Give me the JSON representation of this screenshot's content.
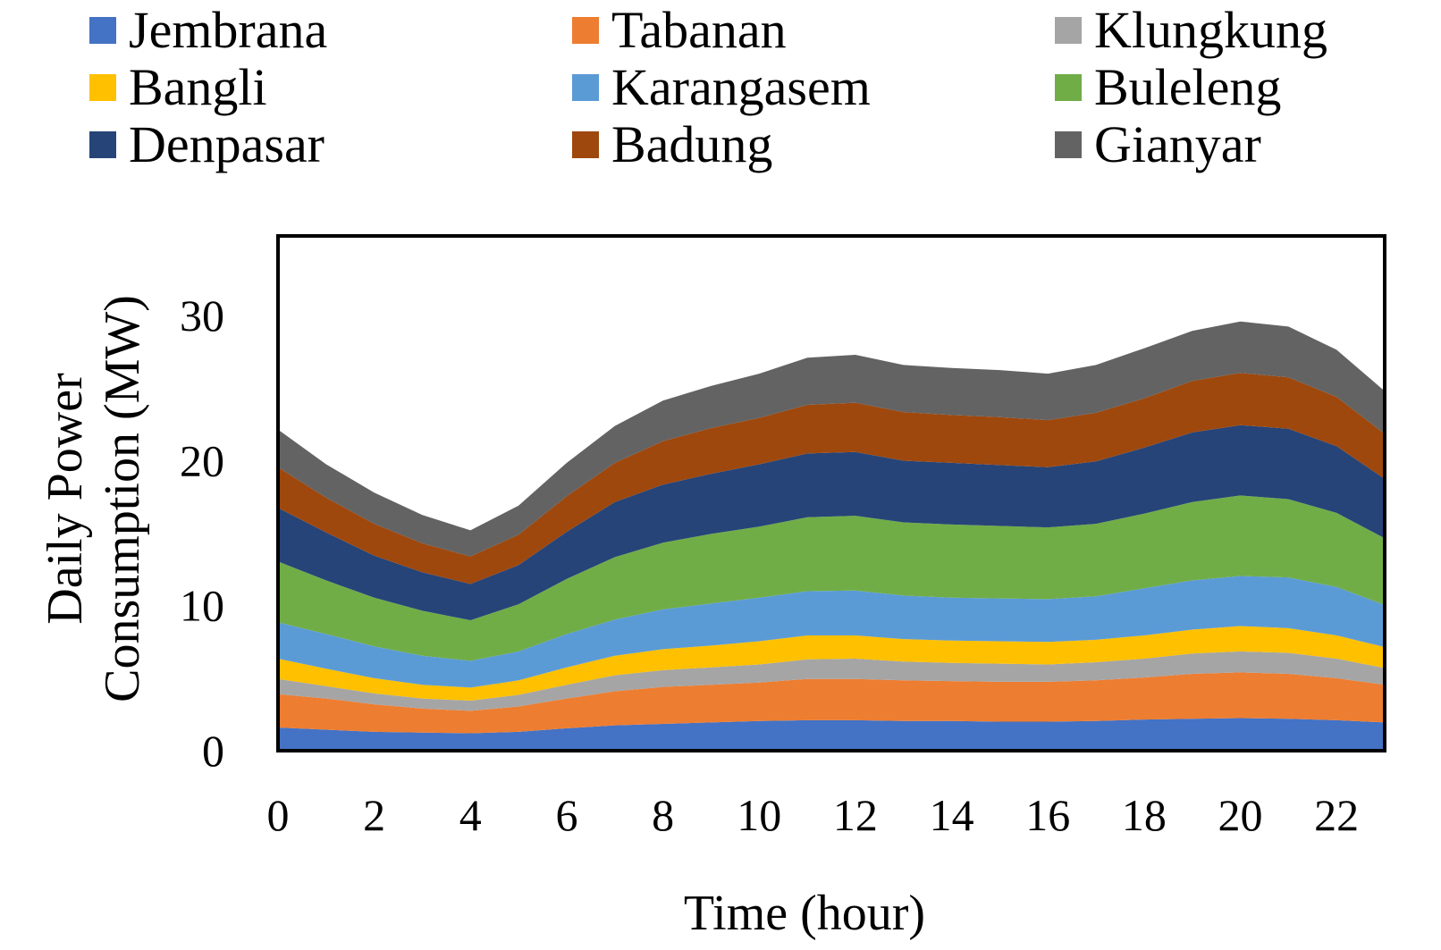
{
  "chart_data": {
    "type": "area",
    "stacked": true,
    "xlabel": "Time (hour)",
    "ylabel_lines": [
      "Daily Power",
      "Consumption (MW)"
    ],
    "x": [
      0,
      1,
      2,
      3,
      4,
      5,
      6,
      7,
      8,
      9,
      10,
      11,
      12,
      13,
      14,
      15,
      16,
      17,
      18,
      19,
      20,
      21,
      22,
      23
    ],
    "x_ticks": [
      0,
      2,
      4,
      6,
      8,
      10,
      12,
      14,
      16,
      18,
      20,
      22
    ],
    "y_ticks": [
      0,
      10,
      20,
      30
    ],
    "xlim": [
      0,
      23
    ],
    "ylim": [
      0,
      35.5
    ],
    "grid": false,
    "legend_position": "top",
    "series": [
      {
        "name": "Jembrana",
        "color": "#4472C4",
        "values": [
          1.6,
          1.45,
          1.3,
          1.25,
          1.2,
          1.3,
          1.55,
          1.75,
          1.85,
          1.95,
          2.05,
          2.1,
          2.1,
          2.05,
          2.05,
          2.0,
          2.0,
          2.05,
          2.15,
          2.2,
          2.25,
          2.2,
          2.1,
          1.95
        ]
      },
      {
        "name": "Tabanan",
        "color": "#ED7D31",
        "values": [
          2.3,
          2.15,
          1.9,
          1.65,
          1.55,
          1.75,
          2.05,
          2.35,
          2.55,
          2.6,
          2.65,
          2.85,
          2.85,
          2.8,
          2.75,
          2.75,
          2.75,
          2.8,
          2.9,
          3.1,
          3.15,
          3.1,
          2.9,
          2.6
        ]
      },
      {
        "name": "Klungkung",
        "color": "#A5A5A5",
        "values": [
          1.05,
          0.85,
          0.75,
          0.7,
          0.7,
          0.8,
          0.95,
          1.1,
          1.15,
          1.2,
          1.25,
          1.35,
          1.4,
          1.3,
          1.25,
          1.25,
          1.2,
          1.25,
          1.3,
          1.4,
          1.45,
          1.45,
          1.35,
          1.15
        ]
      },
      {
        "name": "Bangli",
        "color": "#FFC000",
        "values": [
          1.4,
          1.2,
          1.05,
          0.95,
          0.9,
          1.0,
          1.2,
          1.35,
          1.45,
          1.5,
          1.6,
          1.65,
          1.6,
          1.55,
          1.55,
          1.55,
          1.55,
          1.55,
          1.6,
          1.65,
          1.75,
          1.7,
          1.6,
          1.45
        ]
      },
      {
        "name": "Karangasem",
        "color": "#5B9BD5",
        "values": [
          2.5,
          2.4,
          2.2,
          2.0,
          1.85,
          2.0,
          2.3,
          2.5,
          2.75,
          2.9,
          3.0,
          3.05,
          3.1,
          3.0,
          2.95,
          2.95,
          2.95,
          3.0,
          3.25,
          3.4,
          3.45,
          3.5,
          3.35,
          2.9
        ]
      },
      {
        "name": "Buleleng",
        "color": "#70AD47",
        "values": [
          4.2,
          3.7,
          3.35,
          3.1,
          2.8,
          3.25,
          3.8,
          4.3,
          4.6,
          4.8,
          4.9,
          5.1,
          5.15,
          5.05,
          5.05,
          5.0,
          4.95,
          5.0,
          5.15,
          5.4,
          5.55,
          5.4,
          5.1,
          4.6
        ]
      },
      {
        "name": "Denpasar",
        "color": "#264478",
        "values": [
          3.7,
          3.3,
          2.9,
          2.65,
          2.5,
          2.7,
          3.25,
          3.8,
          4.0,
          4.15,
          4.3,
          4.4,
          4.4,
          4.25,
          4.25,
          4.2,
          4.15,
          4.3,
          4.55,
          4.8,
          4.85,
          4.85,
          4.6,
          4.1
        ]
      },
      {
        "name": "Badung",
        "color": "#9E480E",
        "values": [
          2.8,
          2.4,
          2.2,
          2.0,
          1.9,
          2.1,
          2.45,
          2.7,
          3.0,
          3.15,
          3.2,
          3.35,
          3.4,
          3.35,
          3.3,
          3.3,
          3.25,
          3.35,
          3.4,
          3.55,
          3.6,
          3.55,
          3.4,
          3.1
        ]
      },
      {
        "name": "Gianyar",
        "color": "#636363",
        "values": [
          2.6,
          2.3,
          2.15,
          1.95,
          1.8,
          2.0,
          2.3,
          2.55,
          2.8,
          2.9,
          3.05,
          3.25,
          3.3,
          3.25,
          3.25,
          3.25,
          3.2,
          3.3,
          3.45,
          3.45,
          3.55,
          3.5,
          3.25,
          2.95
        ]
      }
    ]
  }
}
